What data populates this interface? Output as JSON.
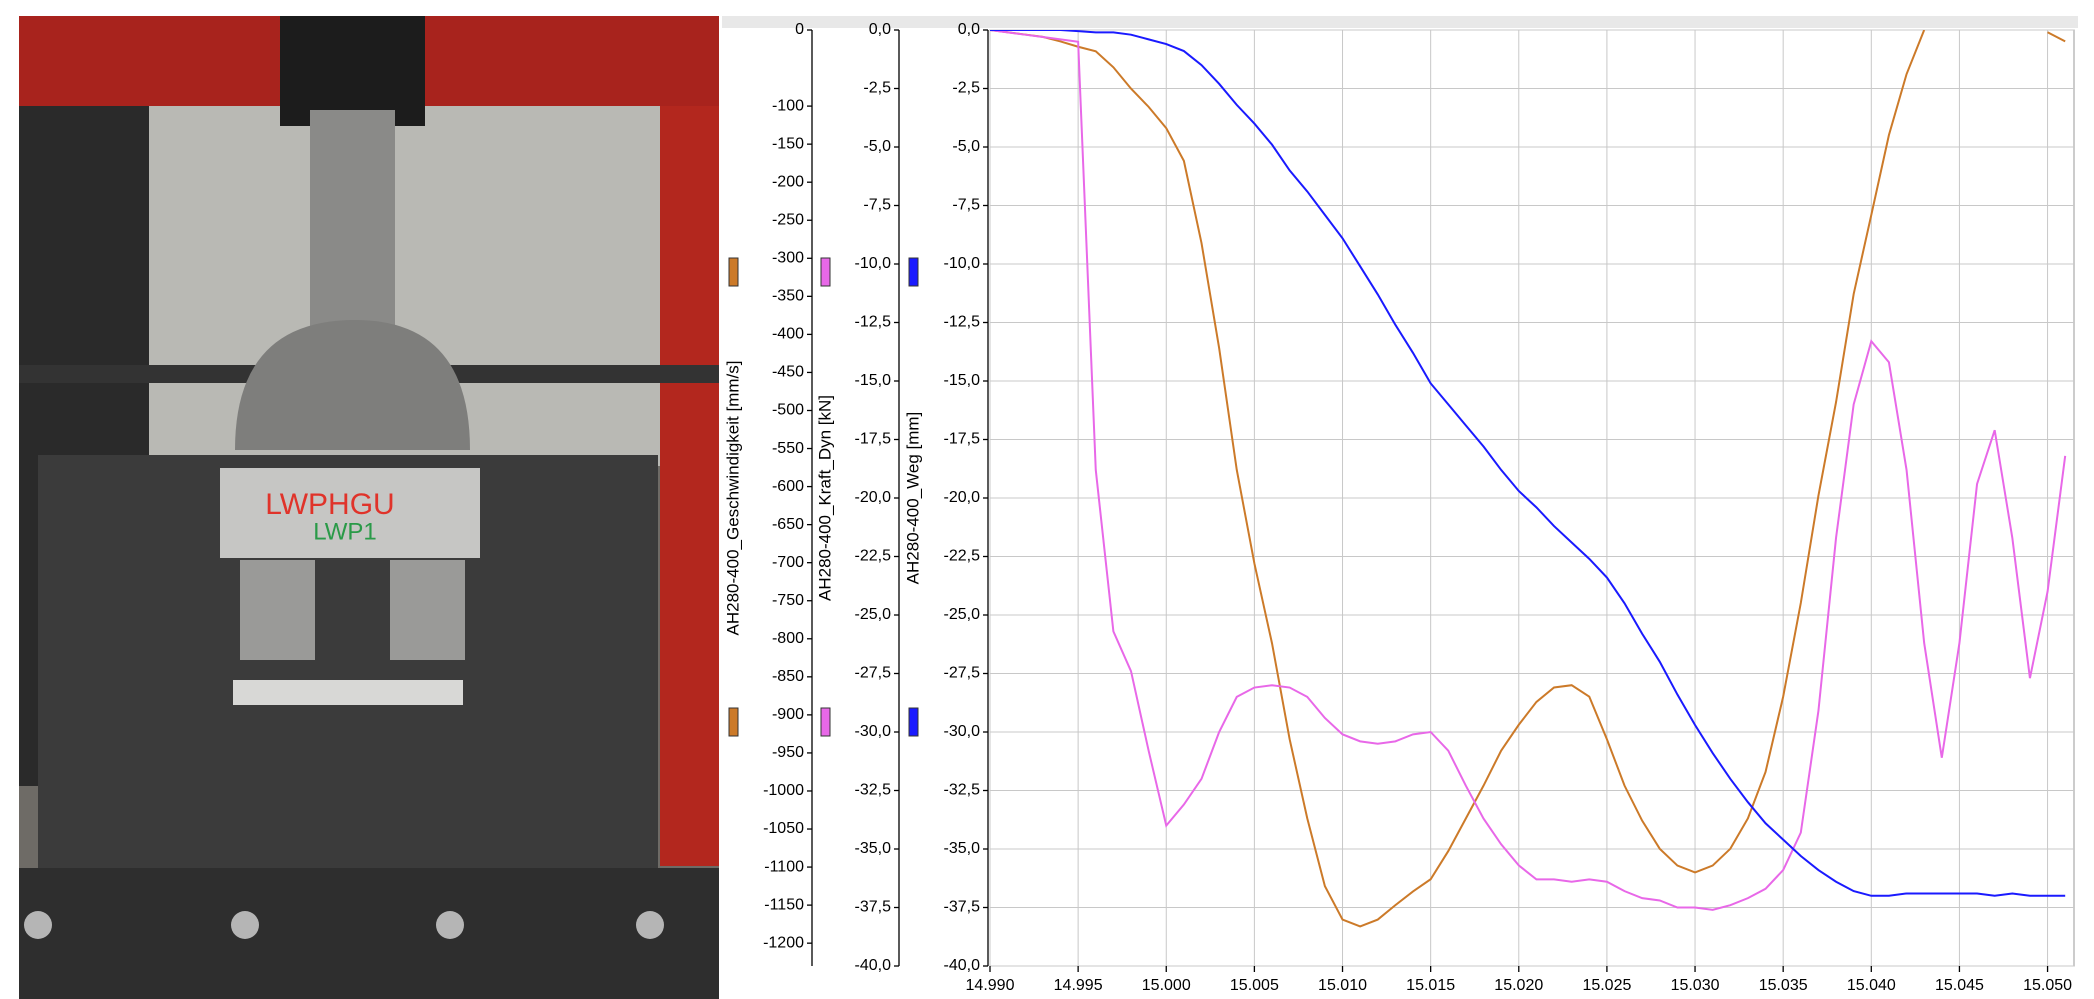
{
  "photo": {
    "labels": [
      "LWPHGU",
      "LWP1"
    ]
  },
  "chart_data": {
    "type": "line",
    "x": [
      14.99,
      14.991,
      14.992,
      14.993,
      14.994,
      14.995,
      14.996,
      14.997,
      14.998,
      14.999,
      15.0,
      15.001,
      15.002,
      15.003,
      15.004,
      15.005,
      15.006,
      15.007,
      15.008,
      15.009,
      15.01,
      15.011,
      15.012,
      15.013,
      15.014,
      15.015,
      15.016,
      15.017,
      15.018,
      15.019,
      15.02,
      15.021,
      15.022,
      15.023,
      15.024,
      15.025,
      15.026,
      15.027,
      15.028,
      15.029,
      15.03,
      15.031,
      15.032,
      15.033,
      15.034,
      15.035,
      15.036,
      15.037,
      15.038,
      15.039,
      15.04,
      15.041,
      15.042,
      15.043,
      15.044,
      15.045,
      15.046,
      15.047,
      15.048,
      15.049,
      15.05,
      15.051
    ],
    "xlim": [
      14.99,
      15.0515
    ],
    "xticks": [
      {
        "value": 14.99,
        "label": "14.990"
      },
      {
        "value": 14.995,
        "label": "14.995"
      },
      {
        "value": 15.0,
        "label": "15.000"
      },
      {
        "value": 15.005,
        "label": "15.005"
      },
      {
        "value": 15.01,
        "label": "15.010"
      },
      {
        "value": 15.015,
        "label": "15.015"
      },
      {
        "value": 15.02,
        "label": "15.020"
      },
      {
        "value": 15.025,
        "label": "15.025"
      },
      {
        "value": 15.03,
        "label": "15.030"
      },
      {
        "value": 15.035,
        "label": "15.035"
      },
      {
        "value": 15.04,
        "label": "15.040"
      },
      {
        "value": 15.045,
        "label": "15.045"
      },
      {
        "value": 15.05,
        "label": "15.050"
      }
    ],
    "y_label": "AH280-400_Geschwindigkeit [mm/s]",
    "ylim": [
      -1230,
      0
    ],
    "yticks": [
      0,
      -100,
      -150,
      -200,
      -250,
      -300,
      -350,
      -400,
      -450,
      -500,
      -550,
      -600,
      -650,
      -700,
      -750,
      -800,
      -850,
      -900,
      -950,
      -1000,
      -1050,
      -1100,
      -1150,
      -1200
    ],
    "y2_label": "AH280-400_Kraft_Dyn [kN]",
    "y2lim": [
      -40,
      0
    ],
    "y2ticks": [
      {
        "value": 0,
        "label": "0,0"
      },
      {
        "value": -2.5,
        "label": "-2,5"
      },
      {
        "value": -5,
        "label": "-5,0"
      },
      {
        "value": -7.5,
        "label": "-7,5"
      },
      {
        "value": -10,
        "label": "-10,0"
      },
      {
        "value": -12.5,
        "label": "-12,5"
      },
      {
        "value": -15,
        "label": "-15,0"
      },
      {
        "value": -17.5,
        "label": "-17,5"
      },
      {
        "value": -20,
        "label": "-20,0"
      },
      {
        "value": -22.5,
        "label": "-22,5"
      },
      {
        "value": -25,
        "label": "-25,0"
      },
      {
        "value": -27.5,
        "label": "-27,5"
      },
      {
        "value": -30,
        "label": "-30,0"
      },
      {
        "value": -32.5,
        "label": "-32,5"
      },
      {
        "value": -35,
        "label": "-35,0"
      },
      {
        "value": -37.5,
        "label": "-37,5"
      },
      {
        "value": -40,
        "label": "-40,0"
      }
    ],
    "y3_label": "AH280-400_Weg [mm]",
    "y3lim": [
      -40,
      0
    ],
    "y3ticks": [
      {
        "value": 0,
        "label": "0,0"
      },
      {
        "value": -2.5,
        "label": "-2,5"
      },
      {
        "value": -5,
        "label": "-5,0"
      },
      {
        "value": -7.5,
        "label": "-7,5"
      },
      {
        "value": -10,
        "label": "-10,0"
      },
      {
        "value": -12.5,
        "label": "-12,5"
      },
      {
        "value": -15,
        "label": "-15,0"
      },
      {
        "value": -17.5,
        "label": "-17,5"
      },
      {
        "value": -20,
        "label": "-20,0"
      },
      {
        "value": -22.5,
        "label": "-22,5"
      },
      {
        "value": -25,
        "label": "-25,0"
      },
      {
        "value": -27.5,
        "label": "-27,5"
      },
      {
        "value": -30,
        "label": "-30,0"
      },
      {
        "value": -32.5,
        "label": "-32,5"
      },
      {
        "value": -35,
        "label": "-35,0"
      },
      {
        "value": -37.5,
        "label": "-37,5"
      },
      {
        "value": -40,
        "label": "-40,0"
      }
    ],
    "grid": true,
    "series": [
      {
        "axis": "y",
        "color": "#cc7a29",
        "values": [
          0,
          -3,
          -6,
          -9,
          -15,
          -22,
          -28,
          -49,
          -77,
          -101,
          -129,
          -172,
          -280,
          -418,
          -578,
          -701,
          -806,
          -932,
          -1036,
          -1125,
          -1169,
          -1178,
          -1169,
          -1150,
          -1132,
          -1116,
          -1079,
          -1036,
          -993,
          -947,
          -913,
          -883,
          -864,
          -861,
          -876,
          -932,
          -993,
          -1039,
          -1076,
          -1098,
          -1107,
          -1098,
          -1076,
          -1036,
          -975,
          -876,
          -753,
          -612,
          -489,
          -347,
          -243,
          -138,
          -58,
          0,
          null,
          null,
          null,
          null,
          null,
          null,
          -3,
          -15
        ]
      },
      {
        "axis": "y2",
        "color": "#e868e8",
        "values": [
          0,
          -0.1,
          -0.2,
          -0.3,
          -0.4,
          -0.5,
          -18.8,
          -25.7,
          -27.4,
          -30.8,
          -34.0,
          -33.1,
          -32.0,
          -30.0,
          -28.5,
          -28.1,
          -28.0,
          -28.1,
          -28.5,
          -29.4,
          -30.1,
          -30.4,
          -30.5,
          -30.4,
          -30.1,
          -30.0,
          -30.8,
          -32.3,
          -33.7,
          -34.8,
          -35.7,
          -36.3,
          -36.3,
          -36.4,
          -36.3,
          -36.4,
          -36.8,
          -37.1,
          -37.2,
          -37.5,
          -37.5,
          -37.6,
          -37.4,
          -37.1,
          -36.7,
          -35.9,
          -34.3,
          -29.1,
          -21.7,
          -16.0,
          -13.3,
          -14.2,
          -18.8,
          -26.2,
          -31.1,
          -26.2,
          -19.4,
          -17.1,
          -21.7,
          -27.7,
          -24.0,
          -18.2
        ]
      },
      {
        "axis": "y3",
        "color": "#1a1aff",
        "values": [
          0,
          0,
          0,
          0,
          0,
          -0.05,
          -0.1,
          -0.1,
          -0.2,
          -0.4,
          -0.6,
          -0.9,
          -1.5,
          -2.3,
          -3.2,
          -4.0,
          -4.9,
          -6.0,
          -6.9,
          -7.9,
          -8.9,
          -10.1,
          -11.3,
          -12.6,
          -13.8,
          -15.1,
          -16.0,
          -16.9,
          -17.8,
          -18.8,
          -19.7,
          -20.4,
          -21.2,
          -21.9,
          -22.6,
          -23.4,
          -24.5,
          -25.8,
          -27.0,
          -28.4,
          -29.7,
          -30.9,
          -32.0,
          -33.0,
          -33.9,
          -34.6,
          -35.3,
          -35.9,
          -36.4,
          -36.8,
          -37.0,
          -37.0,
          -36.9,
          -36.9,
          -36.9,
          -36.9,
          -36.9,
          -37.0,
          -36.9,
          -37.0,
          -37.0,
          -37.0
        ]
      }
    ]
  }
}
